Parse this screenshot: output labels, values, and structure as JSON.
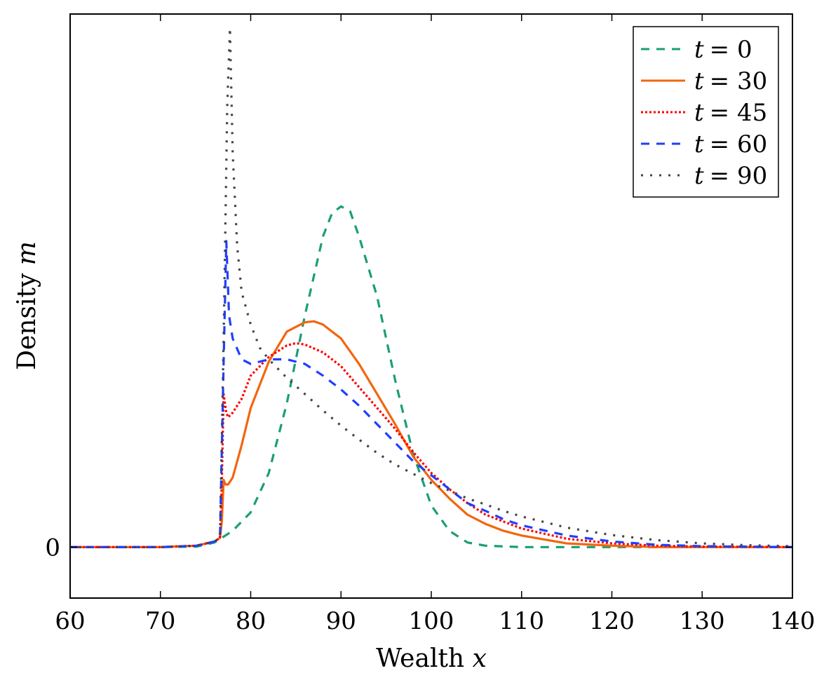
{
  "chart_data": {
    "type": "line",
    "xlabel_text": "Wealth ",
    "xlabel_var": "x",
    "ylabel_text": "Density ",
    "ylabel_var": "m",
    "xlim": [
      60,
      140
    ],
    "ylim": [
      -0.011,
      0.115
    ],
    "xticks": [
      60,
      70,
      80,
      90,
      100,
      110,
      120,
      130,
      140
    ],
    "xtick_labels": [
      "60",
      "70",
      "80",
      "90",
      "100",
      "110",
      "120",
      "130",
      "140"
    ],
    "yticks": [
      0
    ],
    "ytick_labels": [
      "0"
    ],
    "grid": false,
    "legend_position": "top-right",
    "series": [
      {
        "name": "t = 0",
        "legend_var": "t",
        "legend_value": "= 0",
        "color": "#1b9e77",
        "style": "dashed",
        "points": [
          [
            60,
            0
          ],
          [
            70,
            0
          ],
          [
            74,
            0.0001
          ],
          [
            76,
            0.001
          ],
          [
            78,
            0.0035
          ],
          [
            80,
            0.0075
          ],
          [
            82,
            0.016
          ],
          [
            84,
            0.031
          ],
          [
            86,
            0.05
          ],
          [
            88,
            0.067
          ],
          [
            89,
            0.072
          ],
          [
            90,
            0.0735
          ],
          [
            91,
            0.0725
          ],
          [
            92,
            0.067
          ],
          [
            94,
            0.054
          ],
          [
            96,
            0.036
          ],
          [
            98,
            0.02
          ],
          [
            100,
            0.009
          ],
          [
            102,
            0.0035
          ],
          [
            104,
            0.001
          ],
          [
            106,
            0.0003
          ],
          [
            110,
            0
          ],
          [
            140,
            0
          ]
        ]
      },
      {
        "name": "t = 30",
        "legend_var": "t",
        "legend_value": "= 30",
        "color": "#f2660f",
        "style": "solid",
        "points": [
          [
            60,
            0
          ],
          [
            70,
            0
          ],
          [
            74,
            0.0003
          ],
          [
            76,
            0.0012
          ],
          [
            76.6,
            0.002
          ],
          [
            76.8,
            0.0055
          ],
          [
            77,
            0.0145
          ],
          [
            77.2,
            0.0135
          ],
          [
            77.5,
            0.0135
          ],
          [
            78,
            0.015
          ],
          [
            79,
            0.022
          ],
          [
            80,
            0.03
          ],
          [
            82,
            0.04
          ],
          [
            84,
            0.0465
          ],
          [
            86,
            0.0485
          ],
          [
            87,
            0.0487
          ],
          [
            88,
            0.048
          ],
          [
            90,
            0.045
          ],
          [
            92,
            0.0395
          ],
          [
            94,
            0.033
          ],
          [
            96,
            0.0265
          ],
          [
            98,
            0.0195
          ],
          [
            100,
            0.0145
          ],
          [
            102,
            0.0105
          ],
          [
            104,
            0.007
          ],
          [
            106,
            0.005
          ],
          [
            108,
            0.0035
          ],
          [
            110,
            0.0025
          ],
          [
            115,
            0.0008
          ],
          [
            120,
            0.0003
          ],
          [
            125,
            0
          ],
          [
            140,
            0
          ]
        ]
      },
      {
        "name": "t = 45",
        "legend_var": "t",
        "legend_value": "= 45",
        "color": "#ff0000",
        "style": "dotted",
        "points": [
          [
            60,
            0
          ],
          [
            70,
            0
          ],
          [
            74,
            0.0003
          ],
          [
            76,
            0.0012
          ],
          [
            76.6,
            0.002
          ],
          [
            76.8,
            0.014
          ],
          [
            77,
            0.033
          ],
          [
            77.3,
            0.029
          ],
          [
            77.5,
            0.028
          ],
          [
            78,
            0.029
          ],
          [
            79,
            0.032
          ],
          [
            80,
            0.037
          ],
          [
            82,
            0.041
          ],
          [
            84,
            0.0435
          ],
          [
            85,
            0.044
          ],
          [
            86,
            0.0437
          ],
          [
            88,
            0.042
          ],
          [
            90,
            0.039
          ],
          [
            92,
            0.0345
          ],
          [
            94,
            0.03
          ],
          [
            96,
            0.0255
          ],
          [
            98,
            0.0205
          ],
          [
            100,
            0.016
          ],
          [
            102,
            0.0125
          ],
          [
            104,
            0.0095
          ],
          [
            106,
            0.007
          ],
          [
            108,
            0.0055
          ],
          [
            110,
            0.004
          ],
          [
            115,
            0.0018
          ],
          [
            120,
            0.0008
          ],
          [
            125,
            0.0003
          ],
          [
            130,
            0.0001
          ],
          [
            140,
            0
          ]
        ]
      },
      {
        "name": "t = 60",
        "legend_var": "t",
        "legend_value": "= 60",
        "color": "#1f3fff",
        "style": "dashed",
        "points": [
          [
            60,
            0
          ],
          [
            70,
            0
          ],
          [
            74,
            0.0003
          ],
          [
            76,
            0.0012
          ],
          [
            76.6,
            0.002
          ],
          [
            77,
            0.04
          ],
          [
            77.3,
            0.066
          ],
          [
            77.6,
            0.05
          ],
          [
            78,
            0.045
          ],
          [
            79,
            0.0405
          ],
          [
            80,
            0.0395
          ],
          [
            82,
            0.0405
          ],
          [
            84,
            0.0405
          ],
          [
            86,
            0.0395
          ],
          [
            88,
            0.037
          ],
          [
            90,
            0.034
          ],
          [
            92,
            0.0305
          ],
          [
            94,
            0.0265
          ],
          [
            96,
            0.0225
          ],
          [
            98,
            0.0185
          ],
          [
            100,
            0.0155
          ],
          [
            102,
            0.0125
          ],
          [
            104,
            0.0095
          ],
          [
            106,
            0.0078
          ],
          [
            108,
            0.006
          ],
          [
            110,
            0.0047
          ],
          [
            115,
            0.0025
          ],
          [
            120,
            0.0012
          ],
          [
            125,
            0.0005
          ],
          [
            130,
            0.0002
          ],
          [
            140,
            0
          ]
        ]
      },
      {
        "name": "t = 90",
        "legend_var": "t",
        "legend_value": "= 90",
        "color": "#444444",
        "style": "loosely-dotted",
        "points": [
          [
            60,
            0
          ],
          [
            70,
            0
          ],
          [
            74,
            0.0003
          ],
          [
            76,
            0.0012
          ],
          [
            76.6,
            0.002
          ],
          [
            77,
            0.045
          ],
          [
            77.4,
            0.095
          ],
          [
            77.7,
            0.112
          ],
          [
            78,
            0.085
          ],
          [
            78.5,
            0.065
          ],
          [
            79,
            0.055
          ],
          [
            80,
            0.048
          ],
          [
            81,
            0.043
          ],
          [
            82,
            0.0405
          ],
          [
            84,
            0.0365
          ],
          [
            86,
            0.033
          ],
          [
            88,
            0.0295
          ],
          [
            90,
            0.0262
          ],
          [
            92,
            0.0232
          ],
          [
            94,
            0.0203
          ],
          [
            96,
            0.0178
          ],
          [
            98,
            0.0158
          ],
          [
            100,
            0.0138
          ],
          [
            102,
            0.0122
          ],
          [
            104,
            0.0105
          ],
          [
            106,
            0.0092
          ],
          [
            108,
            0.0078
          ],
          [
            110,
            0.0066
          ],
          [
            115,
            0.0042
          ],
          [
            120,
            0.0026
          ],
          [
            125,
            0.0015
          ],
          [
            130,
            0.0008
          ],
          [
            135,
            0.0004
          ],
          [
            140,
            0.0002
          ]
        ]
      }
    ]
  }
}
